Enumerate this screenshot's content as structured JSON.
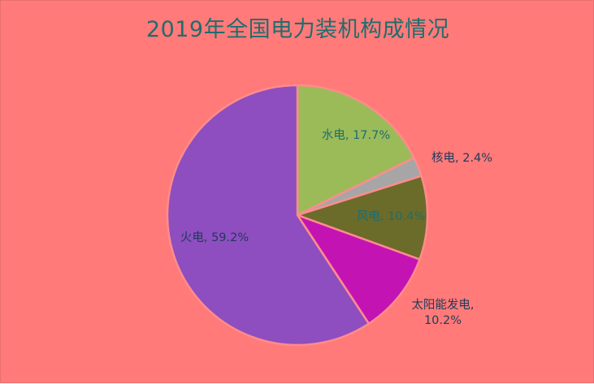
{
  "chart_data": {
    "type": "pie",
    "title": "2019年全国电力装机构成情况",
    "slices": [
      {
        "name": "水电",
        "value": 17.7,
        "label": "水电, 17.7%",
        "color": "#9bbb59",
        "label_color": "#1f6d6f"
      },
      {
        "name": "核电",
        "value": 2.4,
        "label": "核电, 2.4%",
        "color": "#a6a6a6",
        "label_color": "#1f3a5a"
      },
      {
        "name": "风电",
        "value": 10.4,
        "label": "风电, 10.4%",
        "color": "#6b6b2a",
        "label_color": "#1f6d6f"
      },
      {
        "name": "太阳能发电",
        "value": 10.2,
        "label": "太阳能发电, 10.2%",
        "label_lines": [
          "太阳能发电,",
          "10.2%"
        ],
        "color": "#c314b3",
        "label_color": "#1f3a5a"
      },
      {
        "name": "火电",
        "value": 59.2,
        "label": "火电, 59.2%",
        "color": "#8e4ec0",
        "label_color": "#1f3a5a"
      }
    ],
    "start_angle_deg": 0,
    "direction": "clockwise",
    "data_labels": "category-and-percent"
  },
  "colors": {
    "background": "#ff7a79",
    "slice_border": "#ff8c8c",
    "title_color": "#1f6d6f"
  }
}
